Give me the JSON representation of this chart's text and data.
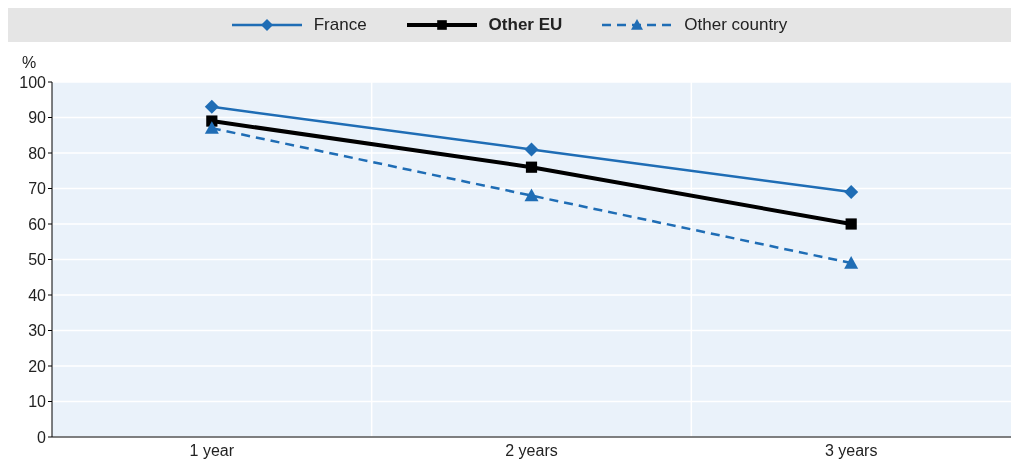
{
  "chart_data": {
    "type": "line",
    "ylabel": "%",
    "categories": [
      "1 year",
      "2 years",
      "3 years"
    ],
    "series": [
      {
        "name": "France",
        "color": "#1f6db5",
        "values": [
          93,
          81,
          69
        ],
        "marker": "diamond",
        "line_style": "solid"
      },
      {
        "name": "Other EU",
        "color": "#000000",
        "values": [
          89,
          76,
          60
        ],
        "marker": "square",
        "line_style": "solid"
      },
      {
        "name": "Other country",
        "color": "#1f6db5",
        "values": [
          87,
          68,
          49
        ],
        "marker": "triangle",
        "line_style": "dashed"
      }
    ],
    "ylim": [
      0,
      100
    ],
    "yticks": [
      0,
      10,
      20,
      30,
      40,
      50,
      60,
      70,
      80,
      90,
      100
    ],
    "grid": true,
    "legend": "top"
  }
}
